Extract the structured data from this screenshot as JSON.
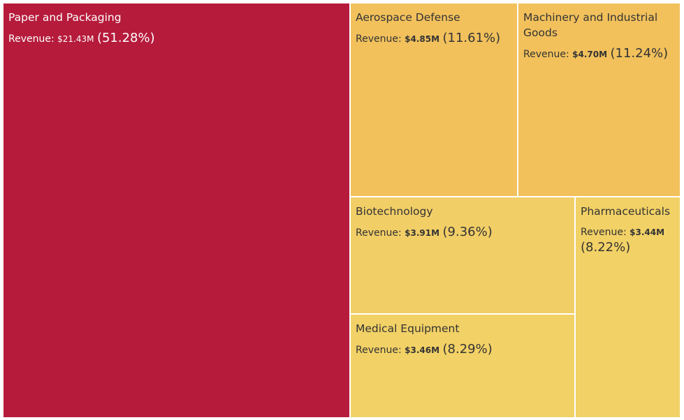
{
  "chart_data": {
    "type": "treemap",
    "metric_label": "Revenue:",
    "items": [
      {
        "name": "Paper and Packaging",
        "value_label": "$21.43M",
        "value": 21.43,
        "percent": "(51.28%)",
        "share": 51.28,
        "color": "#B61B3B"
      },
      {
        "name": "Aerospace Defense",
        "value_label": "$4.85M",
        "value": 4.85,
        "percent": "(11.61%)",
        "share": 11.61,
        "color": "#F2C15C"
      },
      {
        "name": "Machinery and Industrial Goods",
        "value_label": "$4.70M",
        "value": 4.7,
        "percent": "(11.24%)",
        "share": 11.24,
        "color": "#F2C15C"
      },
      {
        "name": "Biotechnology",
        "value_label": "$3.91M",
        "value": 3.91,
        "percent": "(9.36%)",
        "share": 9.36,
        "color": "#F2CE67"
      },
      {
        "name": "Pharmaceuticals",
        "value_label": "$3.44M",
        "value": 3.44,
        "percent": "(8.22%)",
        "share": 8.22,
        "color": "#F2D166"
      },
      {
        "name": "Medical Equipment",
        "value_label": "$3.46M",
        "value": 3.46,
        "percent": "(8.29%)",
        "share": 8.29,
        "color": "#F2D166"
      }
    ]
  }
}
